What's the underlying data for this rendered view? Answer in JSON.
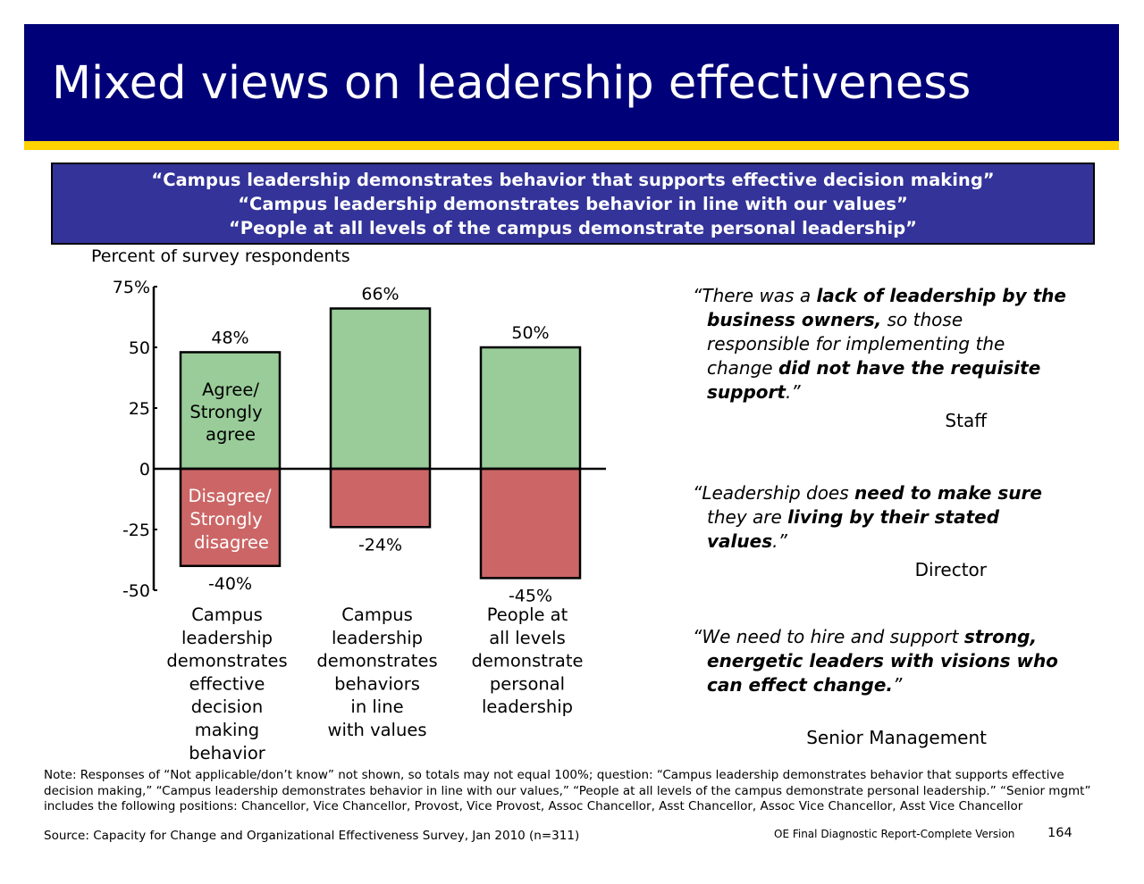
{
  "header": {
    "title": "Mixed views on leadership effectiveness"
  },
  "question_box": {
    "lines": [
      "“Campus leadership demonstrates behavior that supports effective decision making”",
      "“Campus leadership demonstrates behavior in line with our values”",
      "“People at all levels of the campus demonstrate personal leadership”"
    ]
  },
  "chart_data": {
    "type": "bar",
    "subtitle": "Percent of survey respondents",
    "y_ticks": [
      "75%",
      "50",
      "25",
      "0",
      "-25",
      "-50"
    ],
    "y_tick_values": [
      75,
      50,
      25,
      0,
      -25,
      -50
    ],
    "ylim": [
      -50,
      75
    ],
    "categories": [
      [
        "Campus",
        "leadership",
        "demonstrates",
        "effective",
        "decision",
        "making",
        "behavior"
      ],
      [
        "Campus",
        "leadership",
        "demonstrates",
        "behaviors",
        "in line",
        "with values"
      ],
      [
        "People at",
        "all levels",
        "demonstrate",
        "personal",
        "leadership"
      ]
    ],
    "series": [
      {
        "name": "Agree/ Strongly agree",
        "label_lines": [
          "Agree/",
          "Strongly",
          "agree"
        ],
        "values": [
          48,
          66,
          50
        ],
        "value_labels": [
          "48%",
          "66%",
          "50%"
        ],
        "color": "#99cc99"
      },
      {
        "name": "Disagree/ Strongly disagree",
        "label_lines": [
          "Disagree/",
          "Strongly",
          "disagree"
        ],
        "values": [
          -40,
          -24,
          -45
        ],
        "value_labels": [
          "-40%",
          "-24%",
          "-45%"
        ],
        "color": "#cc6666"
      }
    ],
    "grid": false,
    "legend": "inside first bar"
  },
  "quotes": [
    {
      "segments": [
        {
          "t": "“There was a ",
          "b": false
        },
        {
          "t": "lack of leadership by the business owners,",
          "b": true
        },
        {
          "t": " so those responsible for implementing the change ",
          "b": false
        },
        {
          "t": "did not have the requisite support",
          "b": true
        },
        {
          "t": ".”",
          "b": false
        }
      ],
      "attribution": "Staff"
    },
    {
      "segments": [
        {
          "t": "“Leadership does ",
          "b": false
        },
        {
          "t": "need to make sure",
          "b": true
        },
        {
          "t": " they are ",
          "b": false
        },
        {
          "t": "living by their stated values",
          "b": true
        },
        {
          "t": ".”",
          "b": false
        }
      ],
      "attribution": "Director"
    },
    {
      "segments": [
        {
          "t": "“We need to hire and support ",
          "b": false
        },
        {
          "t": "strong, energetic leaders with visions who can effect change.",
          "b": true
        },
        {
          "t": "”",
          "b": false
        }
      ],
      "attribution": "Senior Management"
    }
  ],
  "footer": {
    "note": "Note: Responses of “Not applicable/don’t know” not shown, so totals may not equal 100%; question: “Campus leadership demonstrates behavior that supports effective decision making,” “Campus leadership demonstrates behavior in line with our values,” “People at all levels of the campus demonstrate personal leadership.” “Senior mgmt” includes the following positions: Chancellor, Vice Chancellor, Provost, Vice Provost, Assoc Chancellor, Asst Chancellor, Assoc Vice Chancellor, Asst Vice Chancellor",
    "source": "Source: Capacity for Change and Organizational Effectiveness Survey, Jan 2010 (n=311)",
    "report_label": "OE Final Diagnostic Report-Complete Version",
    "page_number": "164"
  }
}
